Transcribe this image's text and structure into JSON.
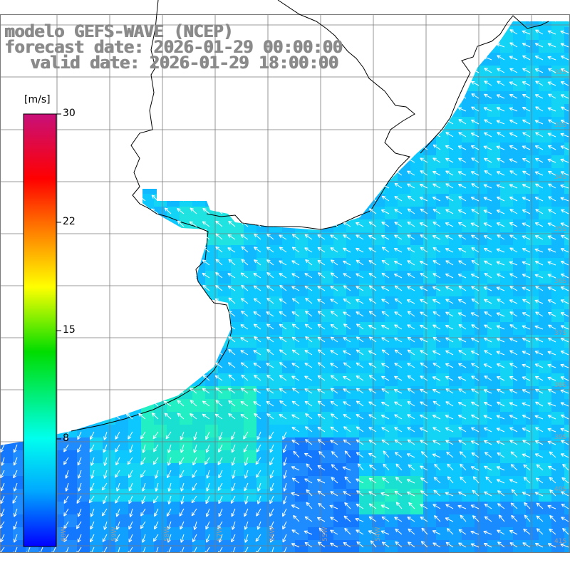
{
  "title": {
    "line1": "modelo GEFS-WAVE (NCEP)",
    "line2": "forecast date: 2026-01-29 00:00:00",
    "line3": "valid date: 2026-01-29 18:00:00"
  },
  "colorbar": {
    "unit": "[m/s]",
    "ticks": [
      "30",
      "22",
      "15",
      "8"
    ],
    "colors": [
      "#c8107a",
      "#ff0000",
      "#ff8c00",
      "#ffff00",
      "#00dd00",
      "#00ffdd",
      "#00aaff",
      "#0000ff"
    ]
  },
  "map_labels": {
    "lon": [
      "60W",
      "59W",
      "58W",
      "57W",
      "56W",
      "55W",
      "54W"
    ],
    "lat": [
      "32S",
      "33S",
      "34S",
      "35S",
      "36S",
      "37S",
      "38S",
      "39S",
      "40S",
      "41S"
    ]
  },
  "colors": {
    "land": "#ffffff",
    "coastline": "#000000",
    "grid": "#7a7a7a",
    "arrow": "#ffffff"
  }
}
